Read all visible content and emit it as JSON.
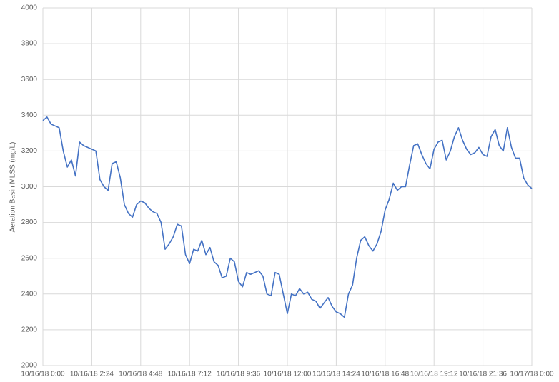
{
  "chart_data": {
    "type": "line",
    "y_label": "Aeration Basin MLSS (mg/L)",
    "color": "#4472c4",
    "grid": true,
    "ylim": [
      2000,
      4000
    ],
    "yticks": [
      2000,
      2200,
      2400,
      2600,
      2800,
      3000,
      3200,
      3400,
      3600,
      3800,
      4000
    ],
    "xlim": [
      "10/16/18 0:00",
      "10/17/18 0:00"
    ],
    "xticks": [
      "10/16/18 0:00",
      "10/16/18 2:24",
      "10/16/18 4:48",
      "10/16/18 7:12",
      "10/16/18 9:36",
      "10/16/18 12:00",
      "10/16/18 14:24",
      "10/16/18 16:48",
      "10/16/18 19:12",
      "10/16/18 21:36",
      "10/17/18 0:00"
    ],
    "x": [
      "10/16/18 0:00",
      "10/16/18 0:12",
      "10/16/18 0:24",
      "10/16/18 0:36",
      "10/16/18 0:48",
      "10/16/18 1:00",
      "10/16/18 1:12",
      "10/16/18 1:24",
      "10/16/18 1:36",
      "10/16/18 1:48",
      "10/16/18 2:00",
      "10/16/18 2:12",
      "10/16/18 2:24",
      "10/16/18 2:36",
      "10/16/18 2:48",
      "10/16/18 3:00",
      "10/16/18 3:12",
      "10/16/18 3:24",
      "10/16/18 3:36",
      "10/16/18 3:48",
      "10/16/18 4:00",
      "10/16/18 4:12",
      "10/16/18 4:24",
      "10/16/18 4:36",
      "10/16/18 4:48",
      "10/16/18 5:00",
      "10/16/18 5:12",
      "10/16/18 5:24",
      "10/16/18 5:36",
      "10/16/18 5:48",
      "10/16/18 6:00",
      "10/16/18 6:12",
      "10/16/18 6:24",
      "10/16/18 6:36",
      "10/16/18 6:48",
      "10/16/18 7:00",
      "10/16/18 7:12",
      "10/16/18 7:24",
      "10/16/18 7:36",
      "10/16/18 7:48",
      "10/16/18 8:00",
      "10/16/18 8:12",
      "10/16/18 8:24",
      "10/16/18 8:36",
      "10/16/18 8:48",
      "10/16/18 9:00",
      "10/16/18 9:12",
      "10/16/18 9:24",
      "10/16/18 9:36",
      "10/16/18 9:48",
      "10/16/18 10:00",
      "10/16/18 10:12",
      "10/16/18 10:24",
      "10/16/18 10:36",
      "10/16/18 10:48",
      "10/16/18 11:00",
      "10/16/18 11:12",
      "10/16/18 11:24",
      "10/16/18 11:36",
      "10/16/18 11:48",
      "10/16/18 12:00",
      "10/16/18 12:12",
      "10/16/18 12:24",
      "10/16/18 12:36",
      "10/16/18 12:48",
      "10/16/18 13:00",
      "10/16/18 13:12",
      "10/16/18 13:24",
      "10/16/18 13:36",
      "10/16/18 13:48",
      "10/16/18 14:00",
      "10/16/18 14:12",
      "10/16/18 14:24",
      "10/16/18 14:36",
      "10/16/18 14:48",
      "10/16/18 15:00",
      "10/16/18 15:12",
      "10/16/18 15:24",
      "10/16/18 15:36",
      "10/16/18 15:48",
      "10/16/18 16:00",
      "10/16/18 16:12",
      "10/16/18 16:24",
      "10/16/18 16:36",
      "10/16/18 16:48",
      "10/16/18 17:00",
      "10/16/18 17:12",
      "10/16/18 17:24",
      "10/16/18 17:36",
      "10/16/18 17:48",
      "10/16/18 18:00",
      "10/16/18 18:12",
      "10/16/18 18:24",
      "10/16/18 18:36",
      "10/16/18 18:48",
      "10/16/18 19:00",
      "10/16/18 19:12",
      "10/16/18 19:24",
      "10/16/18 19:36",
      "10/16/18 19:48",
      "10/16/18 20:00",
      "10/16/18 20:12",
      "10/16/18 20:24",
      "10/16/18 20:36",
      "10/16/18 20:48",
      "10/16/18 21:00",
      "10/16/18 21:12",
      "10/16/18 21:24",
      "10/16/18 21:36",
      "10/16/18 21:48",
      "10/16/18 22:00",
      "10/16/18 22:12",
      "10/16/18 22:24",
      "10/16/18 22:36",
      "10/16/18 22:48",
      "10/16/18 23:00",
      "10/16/18 23:12",
      "10/16/18 23:24",
      "10/16/18 23:36",
      "10/16/18 23:48",
      "10/17/18 0:00"
    ],
    "values": [
      3370,
      3390,
      3350,
      3340,
      3330,
      3200,
      3110,
      3150,
      3060,
      3250,
      3230,
      3220,
      3210,
      3200,
      3040,
      3000,
      2980,
      3130,
      3140,
      3050,
      2900,
      2850,
      2830,
      2900,
      2920,
      2910,
      2880,
      2860,
      2850,
      2800,
      2650,
      2680,
      2720,
      2790,
      2780,
      2620,
      2570,
      2650,
      2640,
      2700,
      2620,
      2660,
      2580,
      2560,
      2490,
      2500,
      2600,
      2580,
      2470,
      2440,
      2520,
      2510,
      2520,
      2530,
      2500,
      2400,
      2390,
      2520,
      2510,
      2400,
      2290,
      2400,
      2390,
      2430,
      2400,
      2410,
      2370,
      2360,
      2320,
      2350,
      2380,
      2330,
      2300,
      2290,
      2270,
      2400,
      2450,
      2600,
      2700,
      2720,
      2670,
      2640,
      2680,
      2750,
      2870,
      2930,
      3020,
      2980,
      3000,
      3000,
      3120,
      3230,
      3240,
      3180,
      3130,
      3100,
      3210,
      3250,
      3260,
      3150,
      3200,
      3280,
      3330,
      3260,
      3210,
      3180,
      3190,
      3220,
      3180,
      3170,
      3280,
      3320,
      3230,
      3200,
      3330,
      3220,
      3160,
      3160,
      3050,
      3010,
      2990
    ]
  }
}
